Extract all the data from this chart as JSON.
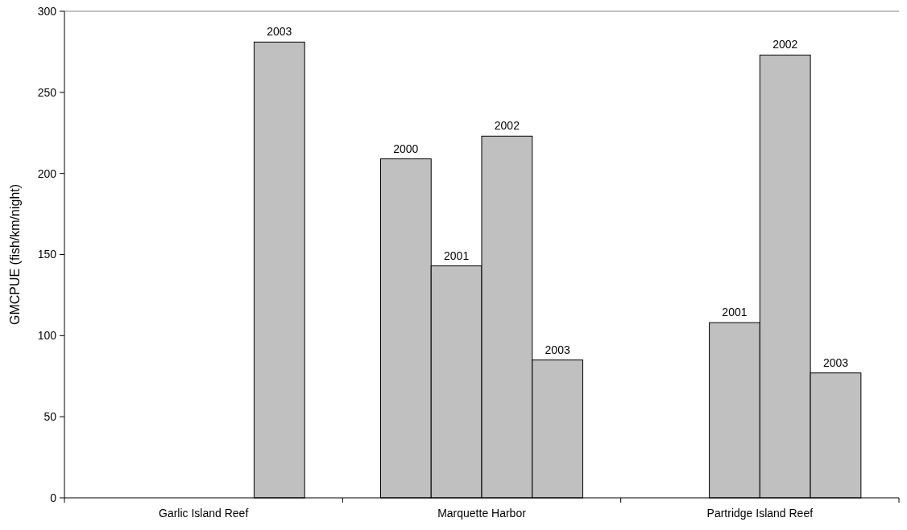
{
  "chart_data": {
    "type": "bar",
    "ylabel": "GMCPUE (fish/km/night)",
    "categories": [
      "Garlic Island Reef",
      "Marquette Harbor",
      "Partridge Island Reef"
    ],
    "series": [
      {
        "name": "2000",
        "color": "#c0c0c0",
        "values": [
          null,
          209,
          null
        ]
      },
      {
        "name": "2001",
        "color": "#c0c0c0",
        "values": [
          null,
          143,
          108
        ]
      },
      {
        "name": "2002",
        "color": "#c0c0c0",
        "values": [
          null,
          223,
          273
        ]
      },
      {
        "name": "2003",
        "color": "#c0c0c0",
        "values": [
          281,
          85,
          77
        ]
      }
    ],
    "ylim": [
      0,
      300
    ],
    "yticks": [
      0,
      50,
      100,
      150,
      200,
      250,
      300
    ]
  }
}
